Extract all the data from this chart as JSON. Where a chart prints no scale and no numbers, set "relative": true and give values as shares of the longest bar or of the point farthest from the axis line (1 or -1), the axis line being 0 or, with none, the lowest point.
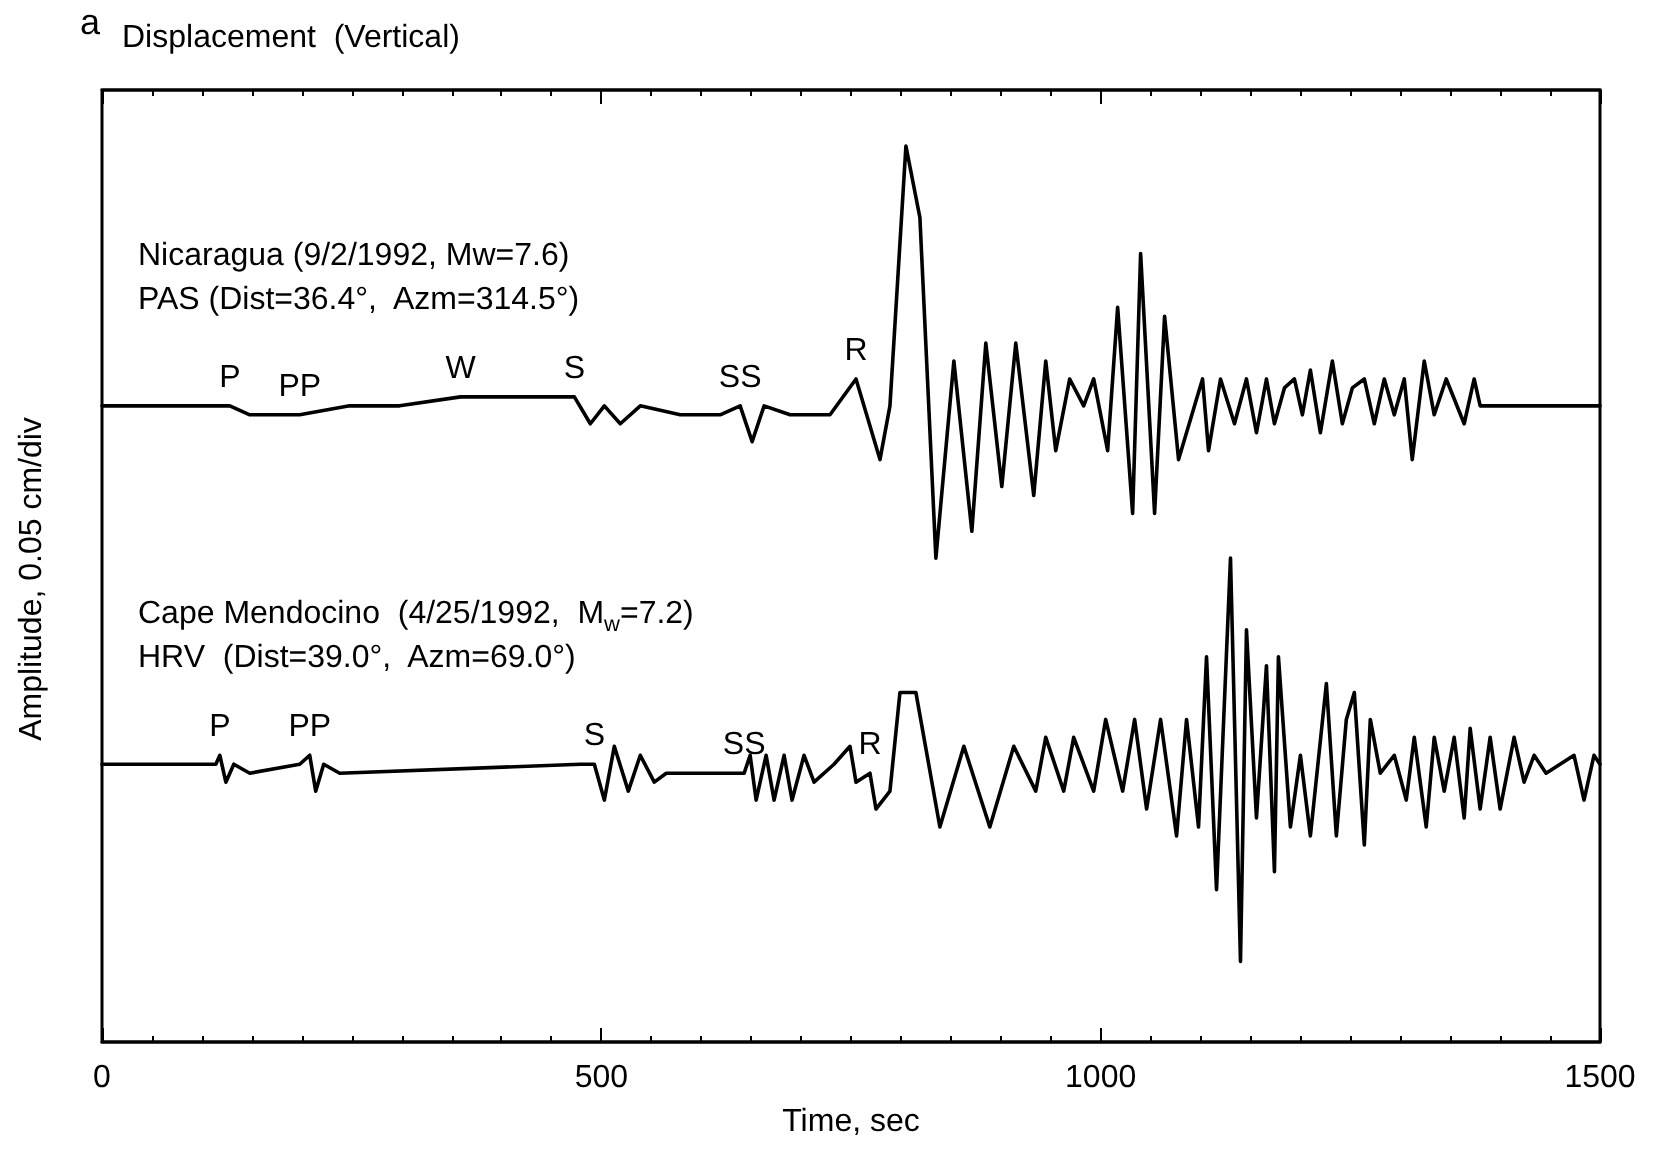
{
  "chart_data": {
    "type": "line",
    "title": "Displacement  (Vertical)",
    "xlabel": "Time, sec",
    "ylabel": "Amplitude, 0.05 cm/div",
    "relative": true,
    "legend": false,
    "grid": false,
    "marker": "none",
    "line_style": "solid",
    "xlim": [
      0,
      1500
    ],
    "xticks": [
      0,
      500,
      1000,
      1500
    ],
    "annotations": [
      "a",
      {
        "text": "P",
        "x": 128,
        "y": 0.71
      },
      {
        "text": "PP",
        "x": 198,
        "y": 0.7
      },
      {
        "text": "W",
        "x": 359,
        "y": 0.72
      },
      {
        "text": "S",
        "x": 473,
        "y": 0.72
      },
      {
        "text": "SS",
        "x": 639,
        "y": 0.71
      },
      {
        "text": "R",
        "x": 755,
        "y": 0.74
      },
      {
        "text": "P",
        "x": 118,
        "y": 0.32
      },
      {
        "text": "PP",
        "x": 208,
        "y": 0.32
      },
      {
        "text": "S",
        "x": 493,
        "y": 0.31
      },
      {
        "text": "SS",
        "x": 643,
        "y": 0.3
      },
      {
        "text": "R",
        "x": 769,
        "y": 0.3
      }
    ],
    "series": [
      {
        "name": "Nicaragua (9/2/1992, Mw=7.6)\nPAS (Dist=36.4°,  Azm=314.5°)",
        "color": "#000000",
        "x": [
          0,
          128,
          148,
          198,
          248,
          298,
          359,
          429,
          473,
          489,
          503,
          519,
          539,
          579,
          619,
          639,
          651,
          663,
          689,
          729,
          755,
          779,
          789,
          805,
          819,
          835,
          853,
          871,
          885,
          901,
          915,
          933,
          945,
          955,
          969,
          983,
          993,
          1007,
          1017,
          1032,
          1040,
          1054,
          1064,
          1078,
          1094,
          1102,
          1108,
          1120,
          1134,
          1146,
          1156,
          1166,
          1174,
          1184,
          1194,
          1202,
          1210,
          1220,
          1232,
          1242,
          1252,
          1264,
          1274,
          1284,
          1294,
          1304,
          1312,
          1324,
          1334,
          1346,
          1364,
          1374,
          1380,
          1500
        ],
        "values": [
          0.71,
          0.71,
          0.7,
          0.7,
          0.71,
          0.71,
          0.72,
          0.72,
          0.72,
          0.69,
          0.71,
          0.69,
          0.71,
          0.7,
          0.7,
          0.71,
          0.67,
          0.71,
          0.7,
          0.7,
          0.74,
          0.65,
          0.71,
          1.0,
          0.92,
          0.54,
          0.76,
          0.57,
          0.78,
          0.62,
          0.78,
          0.61,
          0.76,
          0.66,
          0.74,
          0.71,
          0.74,
          0.66,
          0.82,
          0.59,
          0.88,
          0.59,
          0.81,
          0.65,
          0.71,
          0.74,
          0.66,
          0.74,
          0.69,
          0.74,
          0.68,
          0.74,
          0.69,
          0.73,
          0.74,
          0.7,
          0.75,
          0.68,
          0.76,
          0.69,
          0.73,
          0.74,
          0.69,
          0.74,
          0.7,
          0.74,
          0.65,
          0.76,
          0.7,
          0.74,
          0.69,
          0.74,
          0.71,
          0.71
        ]
      },
      {
        "name": "Cape Mendocino  (4/25/1992,  M$_{w}$=7.2)\nHRV  (Dist=39.0°,  Azm=69.0°)",
        "color": "#000000",
        "x": [
          0,
          114,
          118,
          124,
          132,
          148,
          198,
          208,
          214,
          222,
          238,
          479,
          493,
          503,
          513,
          527,
          539,
          553,
          565,
          643,
          649,
          655,
          665,
          673,
          683,
          691,
          703,
          713,
          733,
          749,
          755,
          769,
          775,
          789,
          799,
          815,
          839,
          863,
          889,
          913,
          935,
          945,
          963,
          973,
          993,
          1005,
          1022,
          1034,
          1046,
          1060,
          1076,
          1086,
          1098,
          1106,
          1116,
          1130,
          1140,
          1146,
          1156,
          1166,
          1174,
          1178,
          1190,
          1200,
          1210,
          1226,
          1236,
          1246,
          1254,
          1264,
          1270,
          1280,
          1294,
          1306,
          1314,
          1326,
          1334,
          1344,
          1354,
          1364,
          1370,
          1380,
          1390,
          1400,
          1414,
          1424,
          1434,
          1446,
          1460,
          1474,
          1484,
          1494,
          1500
        ],
        "values": [
          0.31,
          0.31,
          0.32,
          0.29,
          0.31,
          0.3,
          0.31,
          0.32,
          0.28,
          0.31,
          0.3,
          0.31,
          0.31,
          0.27,
          0.33,
          0.28,
          0.32,
          0.29,
          0.3,
          0.3,
          0.32,
          0.27,
          0.32,
          0.27,
          0.32,
          0.27,
          0.32,
          0.29,
          0.31,
          0.33,
          0.29,
          0.3,
          0.26,
          0.28,
          0.39,
          0.39,
          0.24,
          0.33,
          0.24,
          0.33,
          0.28,
          0.34,
          0.28,
          0.34,
          0.28,
          0.36,
          0.28,
          0.36,
          0.26,
          0.36,
          0.23,
          0.36,
          0.24,
          0.43,
          0.17,
          0.54,
          0.09,
          0.46,
          0.25,
          0.42,
          0.19,
          0.43,
          0.24,
          0.32,
          0.23,
          0.4,
          0.23,
          0.36,
          0.39,
          0.22,
          0.36,
          0.3,
          0.32,
          0.27,
          0.34,
          0.24,
          0.34,
          0.28,
          0.34,
          0.25,
          0.35,
          0.26,
          0.34,
          0.26,
          0.34,
          0.29,
          0.32,
          0.3,
          0.31,
          0.32,
          0.27,
          0.32,
          0.31
        ]
      }
    ]
  }
}
